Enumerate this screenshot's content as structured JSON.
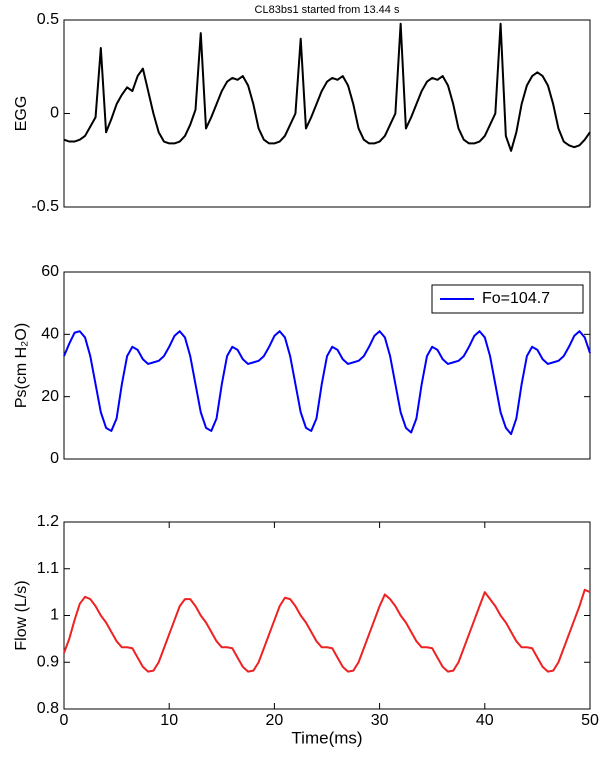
{
  "chart_data": [
    {
      "type": "line",
      "title": "CL83bs1 started from 13.44 s",
      "ylabel": "EGG",
      "x": [
        0,
        0.5,
        1,
        1.5,
        2,
        2.5,
        3,
        3.5,
        4,
        4.5,
        5,
        5.5,
        6,
        6.5,
        7,
        7.5,
        8,
        8.5,
        9,
        9.5,
        10,
        10.5,
        11,
        11.5,
        12,
        12.5,
        13,
        13.5,
        14,
        14.5,
        15,
        15.5,
        16,
        16.5,
        17,
        17.5,
        18,
        18.5,
        19,
        19.5,
        20,
        20.5,
        21,
        21.5,
        22,
        22.5,
        23,
        23.5,
        24,
        24.5,
        25,
        25.5,
        26,
        26.5,
        27,
        27.5,
        28,
        28.5,
        29,
        29.5,
        30,
        30.5,
        31,
        31.5,
        32,
        32.5,
        33,
        33.5,
        34,
        34.5,
        35,
        35.5,
        36,
        36.5,
        37,
        37.5,
        38,
        38.5,
        39,
        39.5,
        40,
        40.5,
        41,
        41.5,
        42,
        42.5,
        43,
        43.5,
        44,
        44.5,
        45,
        45.5,
        46,
        46.5,
        47,
        47.5,
        48,
        48.5,
        49,
        49.5,
        50
      ],
      "series": [
        {
          "color": "#000000",
          "values": [
            -0.14,
            -0.15,
            -0.15,
            -0.14,
            -0.12,
            -0.07,
            -0.02,
            0.35,
            -0.1,
            -0.03,
            0.05,
            0.1,
            0.14,
            0.12,
            0.2,
            0.24,
            0.12,
            0.0,
            -0.1,
            -0.15,
            -0.16,
            -0.16,
            -0.15,
            -0.12,
            -0.06,
            0.02,
            0.43,
            -0.08,
            -0.02,
            0.05,
            0.12,
            0.17,
            0.19,
            0.18,
            0.2,
            0.15,
            0.05,
            -0.08,
            -0.14,
            -0.16,
            -0.16,
            -0.15,
            -0.12,
            -0.06,
            0.0,
            0.4,
            -0.08,
            -0.02,
            0.05,
            0.12,
            0.17,
            0.19,
            0.18,
            0.2,
            0.15,
            0.05,
            -0.08,
            -0.14,
            -0.16,
            -0.16,
            -0.15,
            -0.12,
            -0.06,
            0.0,
            0.48,
            -0.08,
            -0.02,
            0.05,
            0.12,
            0.17,
            0.19,
            0.18,
            0.2,
            0.15,
            0.05,
            -0.08,
            -0.14,
            -0.16,
            -0.16,
            -0.15,
            -0.12,
            -0.06,
            0.0,
            0.48,
            -0.12,
            -0.2,
            -0.1,
            0.05,
            0.15,
            0.2,
            0.22,
            0.2,
            0.15,
            0.05,
            -0.08,
            -0.15,
            -0.17,
            -0.18,
            -0.17,
            -0.14,
            -0.1
          ]
        }
      ],
      "xlim": [
        0,
        50
      ],
      "ylim": [
        -0.5,
        0.5
      ],
      "yticks": [
        -0.5,
        0,
        0.5
      ]
    },
    {
      "type": "line",
      "ylabel": "Ps(cm H₂O)",
      "x": [
        0,
        0.5,
        1,
        1.5,
        2,
        2.5,
        3,
        3.5,
        4,
        4.5,
        5,
        5.5,
        6,
        6.5,
        7,
        7.5,
        8,
        8.5,
        9,
        9.5,
        10,
        10.5,
        11,
        11.5,
        12,
        12.5,
        13,
        13.5,
        14,
        14.5,
        15,
        15.5,
        16,
        16.5,
        17,
        17.5,
        18,
        18.5,
        19,
        19.5,
        20,
        20.5,
        21,
        21.5,
        22,
        22.5,
        23,
        23.5,
        24,
        24.5,
        25,
        25.5,
        26,
        26.5,
        27,
        27.5,
        28,
        28.5,
        29,
        29.5,
        30,
        30.5,
        31,
        31.5,
        32,
        32.5,
        33,
        33.5,
        34,
        34.5,
        35,
        35.5,
        36,
        36.5,
        37,
        37.5,
        38,
        38.5,
        39,
        39.5,
        40,
        40.5,
        41,
        41.5,
        42,
        42.5,
        43,
        43.5,
        44,
        44.5,
        45,
        45.5,
        46,
        46.5,
        47,
        47.5,
        48,
        48.5,
        49,
        49.5,
        50
      ],
      "series": [
        {
          "name": "Fo=104.7",
          "color": "#0000ff",
          "values": [
            33,
            37,
            40.5,
            41,
            39,
            33,
            24,
            15,
            10,
            9,
            13,
            24,
            33,
            36,
            35,
            32,
            30.5,
            31,
            31.5,
            33,
            36,
            39.5,
            41,
            39,
            33,
            24,
            15,
            10,
            9,
            13,
            24,
            33,
            36,
            35,
            32,
            30.5,
            31,
            31.5,
            33,
            36,
            39.5,
            41,
            39,
            33,
            24,
            15,
            10,
            9,
            13,
            24,
            33,
            36,
            35,
            32,
            30.5,
            31,
            31.5,
            33,
            36,
            39.5,
            41,
            39,
            33,
            24,
            15,
            10,
            8.5,
            13,
            24,
            33,
            36,
            35,
            32,
            30.5,
            31,
            31.5,
            33,
            36,
            39.5,
            41,
            39,
            33,
            24,
            15,
            10,
            8,
            13,
            24,
            33,
            36,
            35,
            32,
            30.5,
            31,
            31.5,
            33,
            36,
            39.5,
            41,
            39,
            34
          ]
        }
      ],
      "xlim": [
        0,
        50
      ],
      "ylim": [
        0,
        60
      ],
      "yticks": [
        0,
        20,
        40,
        60
      ],
      "legend": "upper right"
    },
    {
      "type": "line",
      "ylabel": "Flow (L/s)",
      "xlabel": "Time(ms)",
      "x": [
        0,
        0.5,
        1,
        1.5,
        2,
        2.5,
        3,
        3.5,
        4,
        4.5,
        5,
        5.5,
        6,
        6.5,
        7,
        7.5,
        8,
        8.5,
        9,
        9.5,
        10,
        10.5,
        11,
        11.5,
        12,
        12.5,
        13,
        13.5,
        14,
        14.5,
        15,
        15.5,
        16,
        16.5,
        17,
        17.5,
        18,
        18.5,
        19,
        19.5,
        20,
        20.5,
        21,
        21.5,
        22,
        22.5,
        23,
        23.5,
        24,
        24.5,
        25,
        25.5,
        26,
        26.5,
        27,
        27.5,
        28,
        28.5,
        29,
        29.5,
        30,
        30.5,
        31,
        31.5,
        32,
        32.5,
        33,
        33.5,
        34,
        34.5,
        35,
        35.5,
        36,
        36.5,
        37,
        37.5,
        38,
        38.5,
        39,
        39.5,
        40,
        40.5,
        41,
        41.5,
        42,
        42.5,
        43,
        43.5,
        44,
        44.5,
        45,
        45.5,
        46,
        46.5,
        47,
        47.5,
        48,
        48.5,
        49,
        49.5,
        50
      ],
      "series": [
        {
          "color": "#ee2222",
          "values": [
            0.92,
            0.95,
            0.99,
            1.025,
            1.04,
            1.035,
            1.02,
            1.0,
            0.985,
            0.965,
            0.945,
            0.932,
            0.932,
            0.93,
            0.91,
            0.89,
            0.88,
            0.882,
            0.9,
            0.93,
            0.96,
            0.99,
            1.02,
            1.035,
            1.035,
            1.02,
            1.0,
            0.985,
            0.965,
            0.945,
            0.932,
            0.932,
            0.93,
            0.91,
            0.89,
            0.88,
            0.882,
            0.9,
            0.93,
            0.96,
            0.99,
            1.02,
            1.038,
            1.035,
            1.02,
            1.0,
            0.985,
            0.965,
            0.945,
            0.932,
            0.932,
            0.93,
            0.91,
            0.89,
            0.88,
            0.882,
            0.9,
            0.93,
            0.96,
            0.99,
            1.02,
            1.045,
            1.035,
            1.02,
            1.0,
            0.985,
            0.965,
            0.945,
            0.932,
            0.932,
            0.93,
            0.91,
            0.89,
            0.88,
            0.882,
            0.9,
            0.93,
            0.96,
            0.99,
            1.02,
            1.05,
            1.035,
            1.02,
            1.0,
            0.985,
            0.965,
            0.945,
            0.932,
            0.932,
            0.93,
            0.91,
            0.89,
            0.88,
            0.882,
            0.9,
            0.93,
            0.96,
            0.99,
            1.02,
            1.055,
            1.05
          ]
        }
      ],
      "xlim": [
        0,
        50
      ],
      "xticks": [
        0,
        10,
        20,
        30,
        40,
        50
      ],
      "ylim": [
        0.8,
        1.2
      ],
      "yticks": [
        0.8,
        0.9,
        1,
        1.1,
        1.2
      ]
    }
  ]
}
